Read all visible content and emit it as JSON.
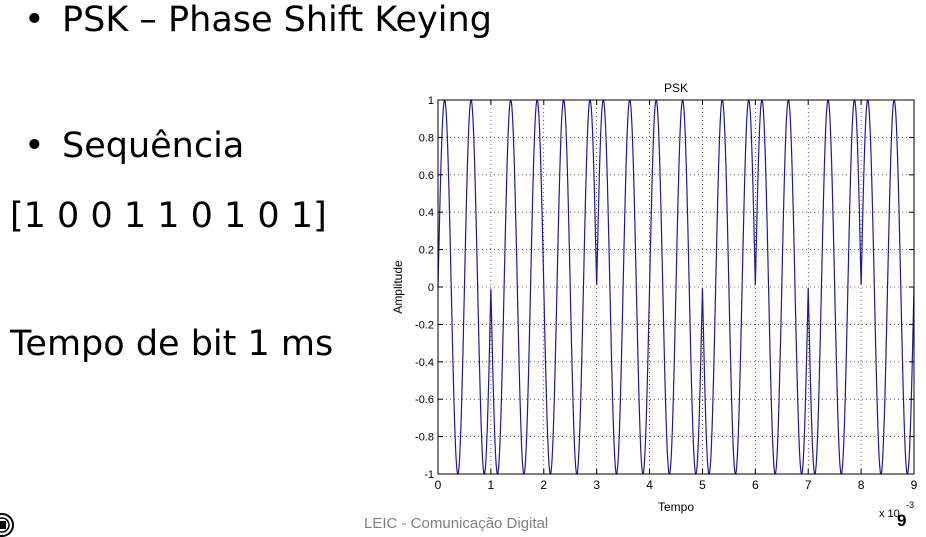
{
  "slide": {
    "bullet_char": "•",
    "title": "PSK – Phase Shift Keying",
    "bullet2": "Sequência",
    "sequence": "[1 0 0 1 1 0 1 0 1]",
    "bit_time": "Tempo de bit 1 ms",
    "footer": "LEIC - Comunicação Digital",
    "page_number": "9"
  },
  "chart_data": {
    "type": "line",
    "title": "PSK",
    "xlabel": "Tempo",
    "ylabel": "Amplitude",
    "x_exponent_label": "x 10",
    "x_exponent": "-3",
    "xlim": [
      0,
      0.009
    ],
    "ylim": [
      -1,
      1
    ],
    "xticks": [
      0,
      1,
      2,
      3,
      4,
      5,
      6,
      7,
      8,
      9
    ],
    "yticks": [
      -1,
      -0.8,
      -0.6,
      -0.4,
      -0.2,
      0,
      0.2,
      0.4,
      0.6,
      0.8,
      1
    ],
    "grid": true,
    "bits": [
      1,
      0,
      0,
      1,
      1,
      0,
      1,
      0,
      1
    ],
    "bit_time_s": 0.001,
    "carrier_cycles_per_bit": 2,
    "series_color": "#1a1a9e"
  }
}
